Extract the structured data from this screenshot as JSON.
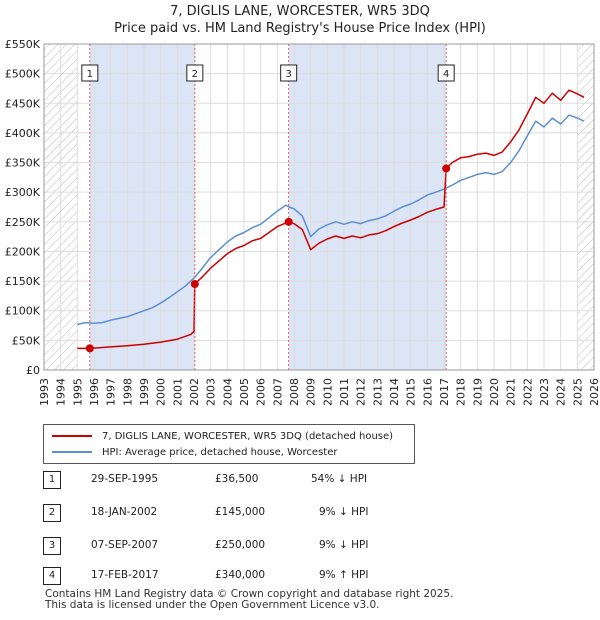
{
  "title": "7, DIGLIS LANE, WORCESTER, WR5 3DQ",
  "subtitle": "Price paid vs. HM Land Registry's House Price Index (HPI)",
  "legend": {
    "property_label": "7, DIGLIS LANE, WORCESTER, WR5 3DQ (detached house)",
    "hpi_label": "HPI: Average price, detached house, Worcester"
  },
  "colors": {
    "property": "#cc0000",
    "hpi": "#5b8fd0",
    "shade": "#dbe5f5"
  },
  "transactions": [
    {
      "num": "1",
      "date": "29-SEP-1995",
      "price": "£36,500",
      "hpi": "54% ↓ HPI"
    },
    {
      "num": "2",
      "date": "18-JAN-2002",
      "price": "£145,000",
      "hpi": "9% ↓ HPI"
    },
    {
      "num": "3",
      "date": "07-SEP-2007",
      "price": "£250,000",
      "hpi": "9% ↓ HPI"
    },
    {
      "num": "4",
      "date": "17-FEB-2017",
      "price": "£340,000",
      "hpi": "9% ↑ HPI"
    }
  ],
  "footer": {
    "line1": "Contains HM Land Registry data © Crown copyright and database right 2025.",
    "line2": "This data is licensed under the Open Government Licence v3.0."
  },
  "chart_data": {
    "type": "line",
    "title": "7, DIGLIS LANE, WORCESTER, WR5 3DQ",
    "subtitle": "Price paid vs. HM Land Registry's House Price Index (HPI)",
    "xlim": [
      1993,
      2026
    ],
    "ylim": [
      0,
      550000
    ],
    "x_ticks": [
      1993,
      1994,
      1995,
      1996,
      1997,
      1998,
      1999,
      2000,
      2001,
      2002,
      2003,
      2004,
      2005,
      2006,
      2007,
      2008,
      2009,
      2010,
      2011,
      2012,
      2013,
      2014,
      2015,
      2016,
      2017,
      2018,
      2019,
      2020,
      2021,
      2022,
      2023,
      2024,
      2025,
      2026
    ],
    "y_ticks": [
      {
        "value": 0,
        "label": "£0"
      },
      {
        "value": 50000,
        "label": "£50K"
      },
      {
        "value": 100000,
        "label": "£100K"
      },
      {
        "value": 150000,
        "label": "£150K"
      },
      {
        "value": 200000,
        "label": "£200K"
      },
      {
        "value": 250000,
        "label": "£250K"
      },
      {
        "value": 300000,
        "label": "£300K"
      },
      {
        "value": 350000,
        "label": "£350K"
      },
      {
        "value": 400000,
        "label": "£400K"
      },
      {
        "value": 450000,
        "label": "£450K"
      },
      {
        "value": 500000,
        "label": "£500K"
      },
      {
        "value": 550000,
        "label": "£550K"
      }
    ],
    "hatched_ranges": [
      [
        1993,
        1995.0
      ],
      [
        2025.0,
        2026
      ]
    ],
    "shaded_ranges": [
      [
        1995.75,
        2002.05
      ],
      [
        2007.68,
        2017.13
      ]
    ],
    "markers": [
      {
        "label": "1",
        "x": 1995.75,
        "y": 36500
      },
      {
        "label": "2",
        "x": 2002.05,
        "y": 145000
      },
      {
        "label": "3",
        "x": 2007.68,
        "y": 250000
      },
      {
        "label": "4",
        "x": 2017.13,
        "y": 340000
      }
    ],
    "series": [
      {
        "name": "HPI: Average price, detached house, Worcester",
        "color": "#5b8fd0",
        "points": [
          [
            1995.0,
            77000
          ],
          [
            1995.5,
            80000
          ],
          [
            1996.0,
            79000
          ],
          [
            1996.5,
            80000
          ],
          [
            1997.0,
            84000
          ],
          [
            1997.5,
            87000
          ],
          [
            1998.0,
            90000
          ],
          [
            1998.5,
            95000
          ],
          [
            1999.0,
            100000
          ],
          [
            1999.5,
            105000
          ],
          [
            2000.0,
            113000
          ],
          [
            2000.5,
            122000
          ],
          [
            2001.0,
            132000
          ],
          [
            2001.5,
            142000
          ],
          [
            2002.0,
            155000
          ],
          [
            2002.5,
            172000
          ],
          [
            2003.0,
            190000
          ],
          [
            2003.5,
            203000
          ],
          [
            2004.0,
            216000
          ],
          [
            2004.5,
            226000
          ],
          [
            2005.0,
            232000
          ],
          [
            2005.5,
            240000
          ],
          [
            2006.0,
            246000
          ],
          [
            2006.5,
            257000
          ],
          [
            2007.0,
            268000
          ],
          [
            2007.5,
            278000
          ],
          [
            2007.7,
            275000
          ],
          [
            2008.0,
            272000
          ],
          [
            2008.5,
            260000
          ],
          [
            2009.0,
            225000
          ],
          [
            2009.5,
            238000
          ],
          [
            2010.0,
            245000
          ],
          [
            2010.5,
            250000
          ],
          [
            2011.0,
            246000
          ],
          [
            2011.5,
            250000
          ],
          [
            2012.0,
            247000
          ],
          [
            2012.5,
            252000
          ],
          [
            2013.0,
            255000
          ],
          [
            2013.5,
            260000
          ],
          [
            2014.0,
            268000
          ],
          [
            2014.5,
            275000
          ],
          [
            2015.0,
            280000
          ],
          [
            2015.5,
            287000
          ],
          [
            2016.0,
            295000
          ],
          [
            2016.5,
            300000
          ],
          [
            2017.0,
            305000
          ],
          [
            2017.5,
            312000
          ],
          [
            2018.0,
            320000
          ],
          [
            2018.5,
            325000
          ],
          [
            2019.0,
            330000
          ],
          [
            2019.5,
            333000
          ],
          [
            2020.0,
            330000
          ],
          [
            2020.5,
            335000
          ],
          [
            2021.0,
            350000
          ],
          [
            2021.5,
            370000
          ],
          [
            2022.0,
            395000
          ],
          [
            2022.5,
            420000
          ],
          [
            2023.0,
            410000
          ],
          [
            2023.5,
            425000
          ],
          [
            2024.0,
            415000
          ],
          [
            2024.5,
            430000
          ],
          [
            2025.0,
            425000
          ],
          [
            2025.4,
            420000
          ]
        ]
      },
      {
        "name": "7, DIGLIS LANE, WORCESTER, WR5 3DQ (detached house)",
        "color": "#cc0000",
        "points": [
          [
            1995.0,
            36500
          ],
          [
            1995.75,
            36500
          ],
          [
            1996.5,
            38000
          ],
          [
            1997.0,
            39000
          ],
          [
            1998.0,
            41000
          ],
          [
            1999.0,
            43500
          ],
          [
            2000.0,
            47000
          ],
          [
            2001.0,
            52000
          ],
          [
            2001.8,
            60000
          ],
          [
            2002.0,
            65000
          ],
          [
            2002.05,
            145000
          ],
          [
            2002.5,
            157000
          ],
          [
            2003.0,
            172000
          ],
          [
            2003.5,
            184000
          ],
          [
            2004.0,
            196000
          ],
          [
            2004.5,
            205000
          ],
          [
            2005.0,
            210000
          ],
          [
            2005.5,
            218000
          ],
          [
            2006.0,
            222000
          ],
          [
            2006.5,
            232000
          ],
          [
            2007.0,
            242000
          ],
          [
            2007.68,
            250000
          ],
          [
            2008.0,
            247000
          ],
          [
            2008.5,
            237000
          ],
          [
            2009.0,
            203000
          ],
          [
            2009.5,
            214000
          ],
          [
            2010.0,
            221000
          ],
          [
            2010.5,
            226000
          ],
          [
            2011.0,
            222000
          ],
          [
            2011.5,
            226000
          ],
          [
            2012.0,
            223000
          ],
          [
            2012.5,
            228000
          ],
          [
            2013.0,
            230000
          ],
          [
            2013.5,
            235000
          ],
          [
            2014.0,
            242000
          ],
          [
            2014.5,
            248000
          ],
          [
            2015.0,
            253000
          ],
          [
            2015.5,
            259000
          ],
          [
            2016.0,
            266000
          ],
          [
            2016.5,
            271000
          ],
          [
            2017.0,
            275000
          ],
          [
            2017.13,
            340000
          ],
          [
            2017.5,
            350000
          ],
          [
            2018.0,
            358000
          ],
          [
            2018.5,
            360000
          ],
          [
            2019.0,
            364000
          ],
          [
            2019.5,
            366000
          ],
          [
            2020.0,
            362000
          ],
          [
            2020.5,
            368000
          ],
          [
            2021.0,
            385000
          ],
          [
            2021.5,
            405000
          ],
          [
            2022.0,
            432000
          ],
          [
            2022.5,
            460000
          ],
          [
            2023.0,
            450000
          ],
          [
            2023.5,
            467000
          ],
          [
            2024.0,
            455000
          ],
          [
            2024.5,
            472000
          ],
          [
            2025.0,
            466000
          ],
          [
            2025.4,
            460000
          ]
        ]
      }
    ]
  }
}
